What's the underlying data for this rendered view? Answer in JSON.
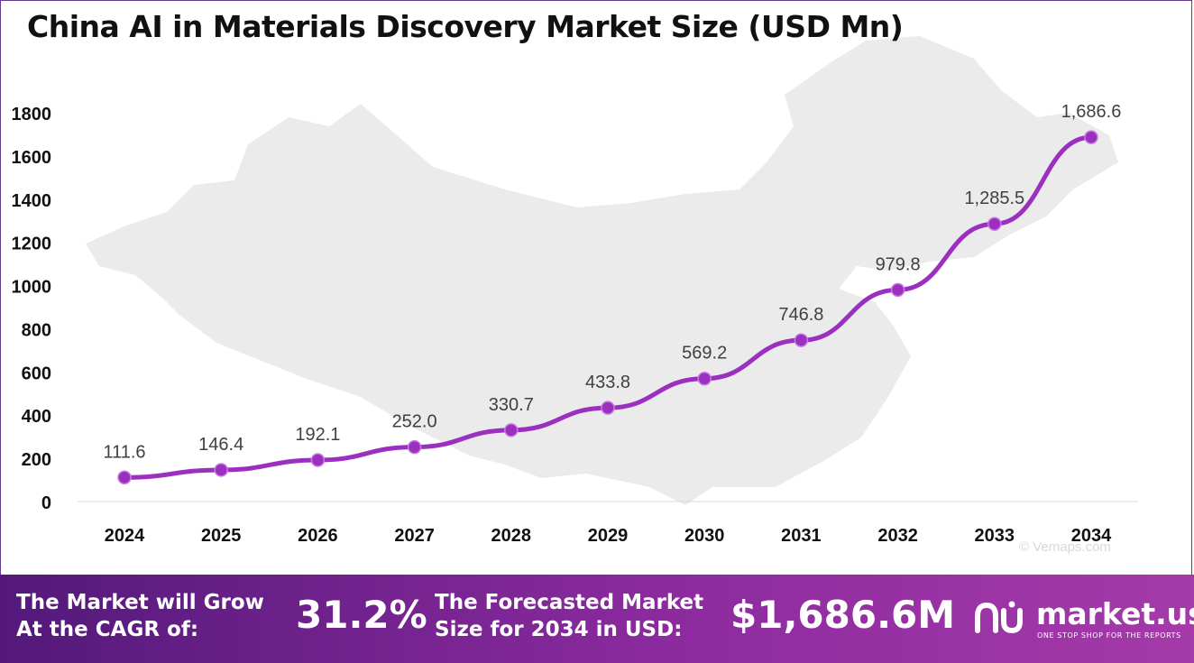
{
  "title": "China AI in Materials Discovery Market Size (USD Mn)",
  "chart_data": {
    "type": "line",
    "title": "China AI in Materials Discovery Market Size (USD Mn)",
    "categories": [
      "2024",
      "2025",
      "2026",
      "2027",
      "2028",
      "2029",
      "2030",
      "2031",
      "2032",
      "2033",
      "2034"
    ],
    "values": [
      111.6,
      146.4,
      192.1,
      252.0,
      330.7,
      433.8,
      569.2,
      746.8,
      979.8,
      1285.5,
      1686.6
    ],
    "data_labels": [
      "111.6",
      "146.4",
      "192.1",
      "252.0",
      "330.7",
      "433.8",
      "569.2",
      "746.8",
      "979.8",
      "1,285.5",
      "1,686.6"
    ],
    "y_ticks": [
      0,
      200,
      400,
      600,
      800,
      1000,
      1200,
      1400,
      1600,
      1800
    ],
    "ylim": [
      0,
      1800
    ],
    "grid": false,
    "line_color": "#9a2fc0",
    "marker_color": "#9a2fc0"
  },
  "watermark": "© Vemaps.com",
  "footer": {
    "cagr_label_line1": "The Market will Grow",
    "cagr_label_line2": "At the CAGR of:",
    "cagr_value": "31.2%",
    "forecast_label_line1": "The Forecasted Market",
    "forecast_label_line2": "Size for 2034 in USD:",
    "forecast_value": "$1,686.6M",
    "brand": "market.us",
    "tagline": "ONE STOP SHOP FOR THE REPORTS",
    "colors": {
      "start": "#53197a",
      "end": "#a53aa9"
    }
  }
}
